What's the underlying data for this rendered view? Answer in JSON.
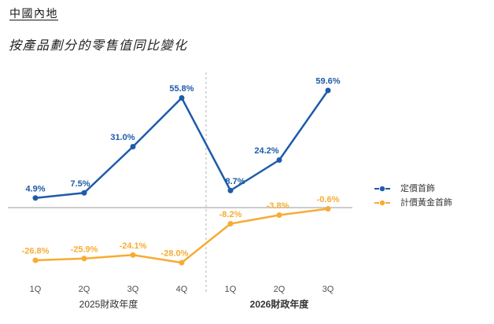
{
  "header": {
    "title": "中國內地",
    "subtitle": "按產品劃分的零售值同比變化"
  },
  "chart_data": {
    "type": "line",
    "title": "按產品劃分的零售值同比變化",
    "categories": [
      "1Q",
      "2Q",
      "3Q",
      "4Q",
      "1Q",
      "2Q",
      "3Q"
    ],
    "x_groups": [
      {
        "label": "2025財政年度",
        "start": 0,
        "end": 3,
        "bold": false
      },
      {
        "label": "2026財政年度",
        "start": 4,
        "end": 6,
        "bold": true
      }
    ],
    "series": [
      {
        "name": "定價首飾",
        "color": "#1E5BA9",
        "values": [
          4.9,
          7.5,
          31.0,
          55.8,
          8.7,
          24.2,
          59.6
        ],
        "labels": [
          "4.9%",
          "7.5%",
          "31.0%",
          "55.8%",
          "8.7%",
          "24.2%",
          "59.6%"
        ]
      },
      {
        "name": "計價黃金首飾",
        "color": "#F8AB33",
        "values": [
          -26.8,
          -25.9,
          -24.1,
          -28.0,
          -8.2,
          -3.8,
          -0.6
        ],
        "labels": [
          "-26.8%",
          "-25.9%",
          "-24.1%",
          "-28.0%",
          "-8.2%",
          "-3.8%",
          "-0.6%"
        ]
      }
    ],
    "divider_after_index": 3,
    "zero_line": true,
    "grid": false,
    "legend_position": "right",
    "ylim": [
      -35,
      70
    ],
    "colors": {
      "axis": "#999999",
      "divider": "#B3B3B3",
      "tick_label": "#4D4D4D",
      "group_label": "#333333",
      "legend_label": "#3A3A3A"
    }
  }
}
